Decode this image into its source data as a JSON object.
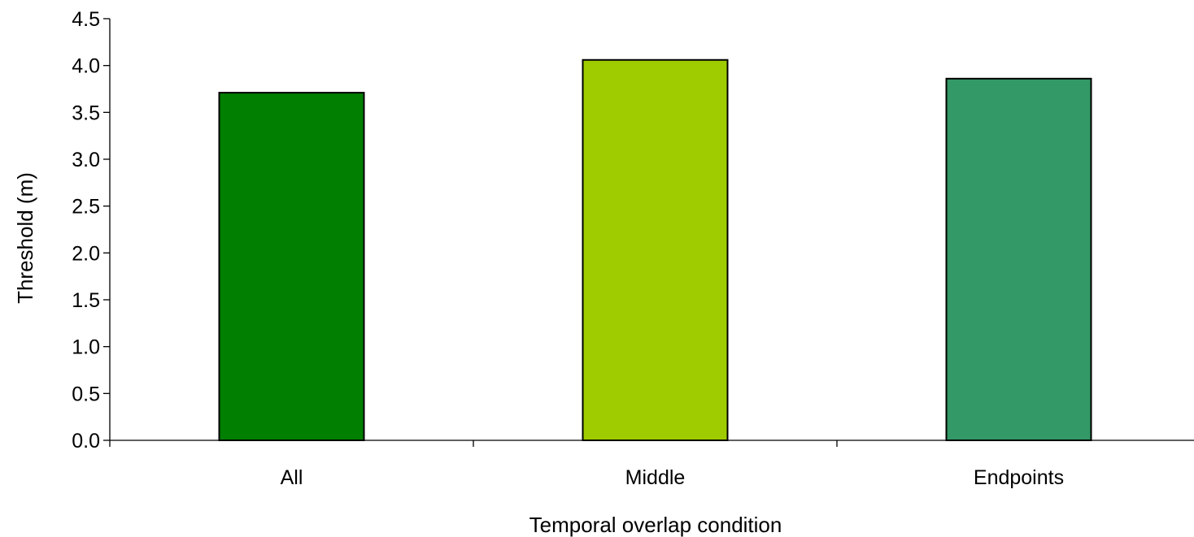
{
  "chart_data": {
    "type": "bar",
    "categories": [
      "All",
      "Middle",
      "Endpoints"
    ],
    "values": [
      3.71,
      4.06,
      3.86
    ],
    "colors": [
      "#007f00",
      "#9fcc00",
      "#339966"
    ],
    "title": "",
    "xlabel": "Temporal overlap condition",
    "ylabel": "Threshold (m)",
    "ylim": [
      0,
      4.5
    ],
    "yticks": [
      "0.0",
      "0.5",
      "1.0",
      "1.5",
      "2.0",
      "2.5",
      "3.0",
      "3.5",
      "4.0",
      "4.5"
    ],
    "grid": false,
    "legend": "none"
  }
}
